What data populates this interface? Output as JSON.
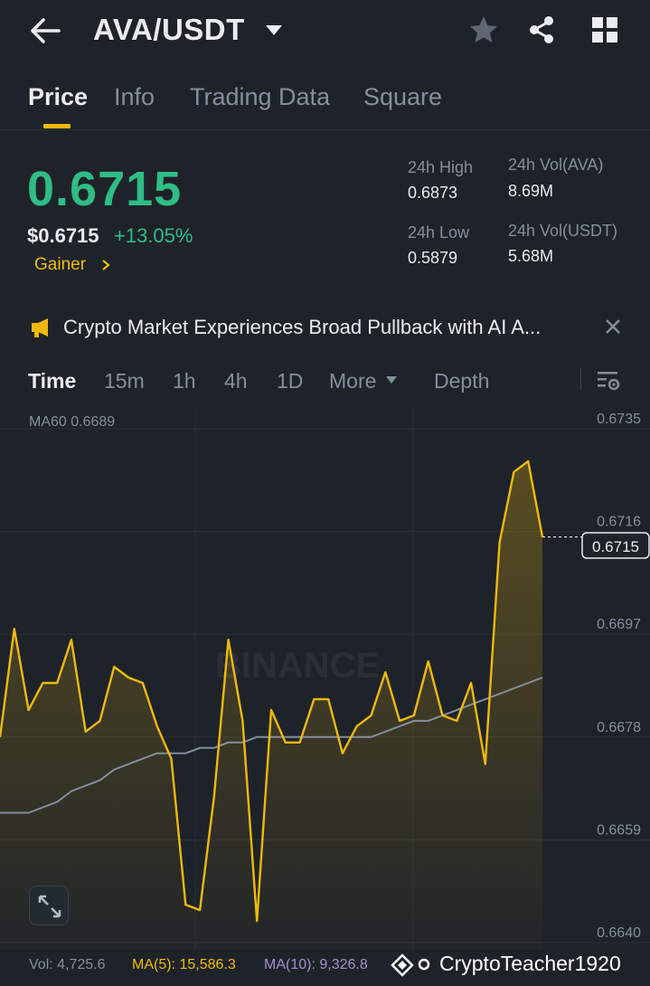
{
  "header": {
    "pair": "AVA/USDT",
    "icons": [
      "back-arrow-icon",
      "caret-down-icon",
      "star-icon",
      "share-icon",
      "grid-icon"
    ]
  },
  "tabs": [
    {
      "label": "Price",
      "active": true
    },
    {
      "label": "Info",
      "active": false
    },
    {
      "label": "Trading Data",
      "active": false
    },
    {
      "label": "Square",
      "active": false
    }
  ],
  "price": {
    "last": "0.6715",
    "usd": "$0.6715",
    "change": "+13.05%",
    "tag": "Gainer"
  },
  "stats": {
    "high_label": "24h High",
    "high_value": "0.6873",
    "low_label": "24h Low",
    "low_value": "0.5879",
    "vol_base_label": "24h Vol(AVA)",
    "vol_base_value": "8.69M",
    "vol_quote_label": "24h Vol(USDT)",
    "vol_quote_value": "5.68M"
  },
  "news": {
    "headline": "Crypto Market Experiences Broad Pullback with AI A..."
  },
  "intervals": [
    {
      "label": "Time",
      "active": true
    },
    {
      "label": "15m",
      "active": false
    },
    {
      "label": "1h",
      "active": false
    },
    {
      "label": "4h",
      "active": false
    },
    {
      "label": "1D",
      "active": false
    },
    {
      "label": "More",
      "active": false
    },
    {
      "label": "Depth",
      "active": false
    }
  ],
  "chart": {
    "ma60_label": "MA60 0.6689",
    "y_ticks": [
      "0.6735",
      "0.6716",
      "0.6697",
      "0.6678",
      "0.6659",
      "0.6640"
    ],
    "current_price_label": "0.6715",
    "watermark": "BINANCE"
  },
  "chart_data": {
    "type": "area",
    "ylim": [
      0.664,
      0.6735
    ],
    "price": [
      0.6678,
      0.6698,
      0.6683,
      0.6688,
      0.6688,
      0.6696,
      0.6679,
      0.6681,
      0.6691,
      0.6689,
      0.6688,
      0.668,
      0.6674,
      0.6647,
      0.6646,
      0.6667,
      0.6696,
      0.6681,
      0.6644,
      0.6683,
      0.6677,
      0.6677,
      0.6685,
      0.6685,
      0.6675,
      0.668,
      0.6682,
      0.669,
      0.6681,
      0.6682,
      0.6692,
      0.6682,
      0.6681,
      0.6688,
      0.6673,
      0.6714,
      0.6727,
      0.6729,
      0.6715
    ],
    "ma60": [
      0.6664,
      0.6664,
      0.6664,
      0.6665,
      0.6666,
      0.6668,
      0.6669,
      0.667,
      0.6672,
      0.6673,
      0.6674,
      0.6675,
      0.6675,
      0.6675,
      0.6676,
      0.6676,
      0.6677,
      0.6677,
      0.6678,
      0.6678,
      0.6678,
      0.6678,
      0.6678,
      0.6678,
      0.6678,
      0.6678,
      0.6678,
      0.6679,
      0.668,
      0.6681,
      0.6681,
      0.6682,
      0.6683,
      0.6684,
      0.6685,
      0.6686,
      0.6687,
      0.6688,
      0.6689
    ],
    "colors": {
      "price": "#f0b90b",
      "ma60": "#848e9c",
      "up": "#2ebd85",
      "accent": "#f0b90b"
    }
  },
  "footer": {
    "vol": "Vol: 4,725.6",
    "ma5": "MA(5): 15,586.3",
    "ma10": "MA(10): 9,326.8",
    "watermark_user": "CryptoTeacher1920"
  }
}
